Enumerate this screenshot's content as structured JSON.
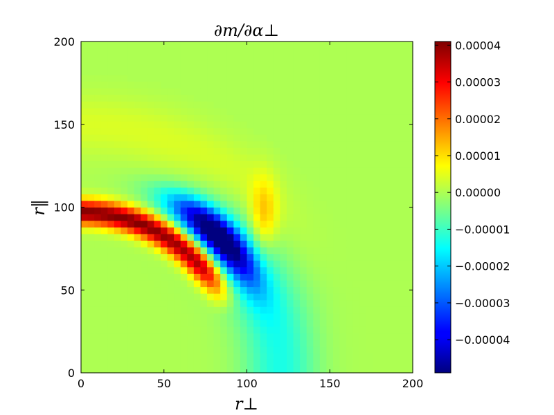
{
  "chart_data": {
    "type": "heatmap",
    "title": "∂m/∂α⊥",
    "xlabel": "r⊥",
    "ylabel": "r‖",
    "xlim": [
      0,
      200
    ],
    "ylim": [
      0,
      200
    ],
    "x_ticks": [
      "0",
      "50",
      "100",
      "150",
      "200"
    ],
    "y_ticks": [
      "0",
      "50",
      "100",
      "150",
      "200"
    ],
    "colormap": "jet",
    "colorbar": {
      "vmin": -4.9e-05,
      "vmax": 4.1e-05,
      "ticks": [
        4e-05,
        3e-05,
        2e-05,
        1e-05,
        0.0,
        -1e-05,
        -2e-05,
        -3e-05,
        -4e-05
      ],
      "tick_labels": [
        "0.00004",
        "0.00003",
        "0.00002",
        "0.00001",
        "0.00000",
        "−0.00001",
        "−0.00002",
        "−0.00003",
        "−0.00004"
      ]
    },
    "grid_cells": 50,
    "features": [
      {
        "kind": "positive-ridge",
        "radius": 97,
        "width": 7,
        "peak": 4.1e-05,
        "angle_from_parallel_axis_deg": [
          0,
          62
        ]
      },
      {
        "kind": "negative-trough",
        "radius": 116,
        "width": 10,
        "peak": -4.9e-05,
        "angle_from_parallel_axis_deg": [
          24,
          66
        ]
      },
      {
        "kind": "positive-lobe",
        "center": [
          110,
          95
        ],
        "peak": 1.2e-05
      },
      {
        "kind": "positive-halo",
        "radius": 150,
        "peak": 4e-06
      },
      {
        "kind": "boundary",
        "radius": 180
      }
    ]
  }
}
